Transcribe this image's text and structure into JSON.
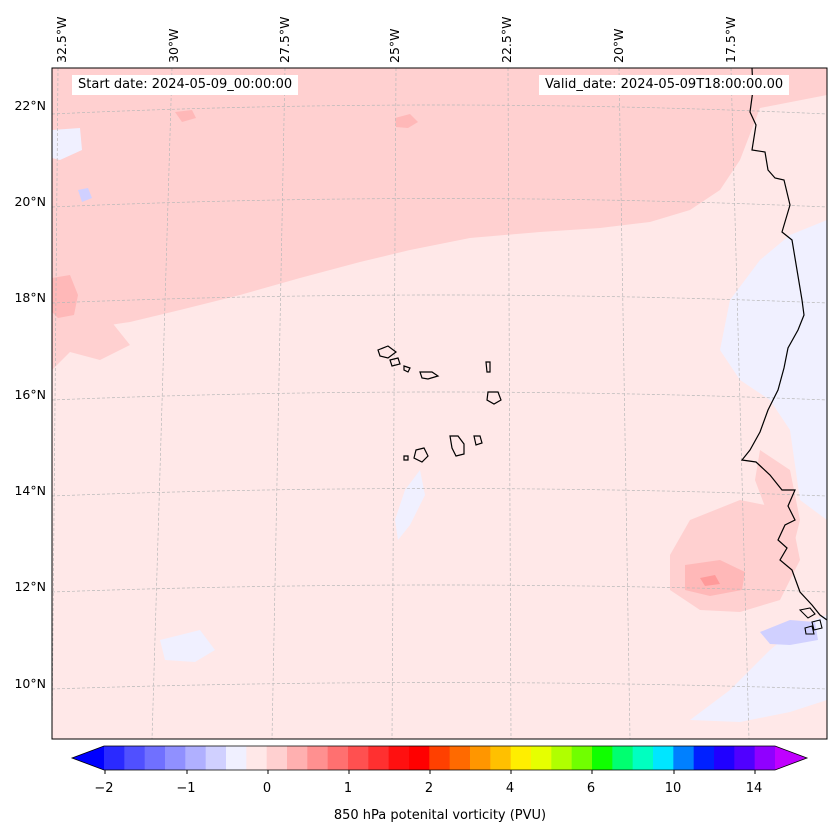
{
  "header": {
    "start_date": "Start date: 2024-05-09_00:00:00",
    "valid_date": "Valid_date: 2024-05-09T18:00:00.00"
  },
  "longitude_labels": [
    "32.5°W",
    "30°W",
    "27.5°W",
    "25°W",
    "22.5°W",
    "20°W",
    "17.5°W"
  ],
  "latitude_labels": [
    "22°N",
    "20°N",
    "18°N",
    "16°N",
    "14°N",
    "12°N",
    "10°N"
  ],
  "colorbar": {
    "label": "850 hPa potenital vorticity (PVU)",
    "ticks": [
      "−2",
      "−1",
      "0",
      "1",
      "2",
      "4",
      "6",
      "10",
      "14"
    ],
    "colors": [
      "#0000ff",
      "#2a2aff",
      "#5050ff",
      "#7070ff",
      "#9090ff",
      "#b0b0ff",
      "#d0d0ff",
      "#f0f0ff",
      "#ffe8e8",
      "#ffd0d0",
      "#ffb0b0",
      "#ff9090",
      "#ff7070",
      "#ff5050",
      "#ff3030",
      "#ff1010",
      "#ff0000",
      "#ff4000",
      "#ff6a00",
      "#ff9600",
      "#ffc000",
      "#ffee00",
      "#e6ff00",
      "#b0ff00",
      "#70ff00",
      "#10ff00",
      "#00ff70",
      "#00ffc0",
      "#00e6ff",
      "#0080ff",
      "#0020ff",
      "#2000ff",
      "#5000ff",
      "#9000ff",
      "#c000ff"
    ]
  },
  "map": {
    "features": [
      "Cabo Verde islands",
      "West African coastline"
    ]
  }
}
